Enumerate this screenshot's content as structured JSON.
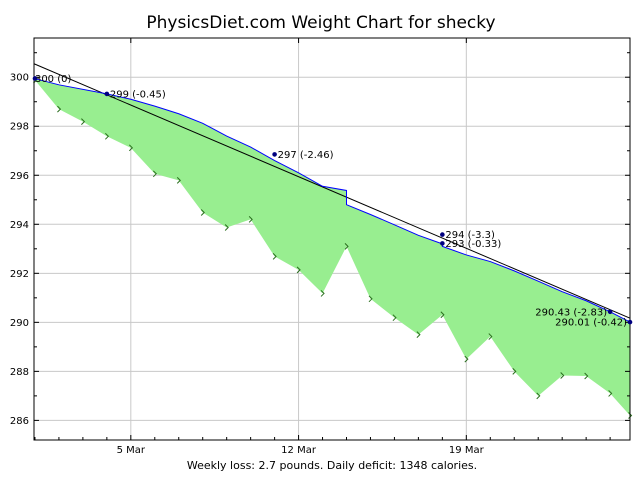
{
  "chart_data": {
    "type": "area",
    "title": "PhysicsDiet.com Weight Chart for shecky",
    "footer": "Weekly loss: 2.7 pounds. Daily deficit: 1348 calories.",
    "x_tick_labels": [
      "5 Mar",
      "12 Mar",
      "19 Mar"
    ],
    "x_tick_days": [
      5,
      12,
      19
    ],
    "xlim": [
      0.96,
      25.83
    ],
    "ylim": [
      285.2,
      301.6
    ],
    "y_ticks": [
      286,
      288,
      290,
      292,
      294,
      296,
      298,
      300
    ],
    "trend": {
      "x": [
        0.96,
        2,
        4,
        5,
        6,
        7,
        8,
        9,
        10,
        11,
        12,
        13,
        14,
        14,
        15,
        16,
        17,
        18,
        18,
        19,
        20,
        21,
        22,
        23,
        24,
        25,
        25.83
      ],
      "y": [
        299.95,
        299.69,
        299.32,
        299.1,
        298.82,
        298.51,
        298.12,
        297.6,
        297.15,
        296.6,
        296.1,
        295.55,
        295.38,
        294.8,
        294.4,
        293.98,
        293.55,
        293.2,
        293.1,
        292.75,
        292.48,
        292.1,
        291.68,
        291.25,
        290.88,
        290.43,
        290.01
      ]
    },
    "weights": {
      "x": [
        1,
        2,
        3,
        4,
        5,
        6,
        7,
        8,
        9,
        10,
        11,
        12,
        13,
        14,
        15,
        16,
        17,
        18,
        19,
        20,
        21,
        22,
        23,
        24,
        25,
        25.83
      ],
      "y": [
        299.88,
        298.7,
        298.19,
        297.59,
        297.12,
        296.06,
        295.79,
        294.48,
        293.87,
        294.2,
        292.69,
        292.14,
        291.18,
        293.1,
        290.96,
        290.19,
        289.5,
        290.31,
        288.5,
        289.42,
        288,
        287,
        287.83,
        287.81,
        287.1,
        286.2
      ]
    },
    "fit_line": {
      "x": [
        0.96,
        25.83
      ],
      "y": [
        300.55,
        290.17
      ]
    },
    "annotations": [
      {
        "x": 1,
        "y": 299.95,
        "label": "300 (0)"
      },
      {
        "x": 4,
        "y": 299.32,
        "label": "299 (-0.45)"
      },
      {
        "x": 11,
        "y": 296.85,
        "label": "297 (-2.46)"
      },
      {
        "x": 18,
        "y": 293.58,
        "label": "294 (-3.3)"
      },
      {
        "x": 18,
        "y": 293.22,
        "label": "293 (-0.33)"
      },
      {
        "x": 25,
        "y": 290.43,
        "label": "290.43 (-2.83)"
      },
      {
        "x": 25.83,
        "y": 290.01,
        "label": "290.01 (-0.42)"
      }
    ],
    "grid": true,
    "colors": {
      "fill": "#98ee90",
      "trend": "#0000ff",
      "fit": "#000000",
      "marker": "#000080",
      "tick_mark": "#2a6e1e",
      "grid": "#c8c8c8"
    }
  }
}
